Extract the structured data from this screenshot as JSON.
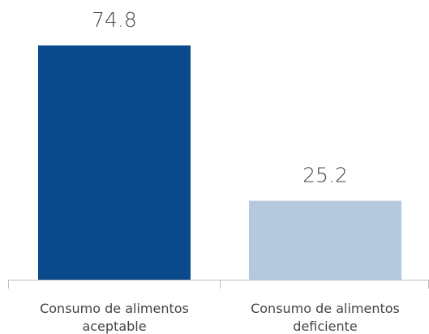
{
  "chart_data": {
    "type": "bar",
    "categories": [
      "Consumo de alimentos aceptable",
      "Consumo de alimentos deficiente"
    ],
    "values": [
      74.8,
      25.2
    ],
    "colors": [
      "#0a4a8c",
      "#b4c8de"
    ],
    "ylim": [
      0,
      80
    ]
  }
}
